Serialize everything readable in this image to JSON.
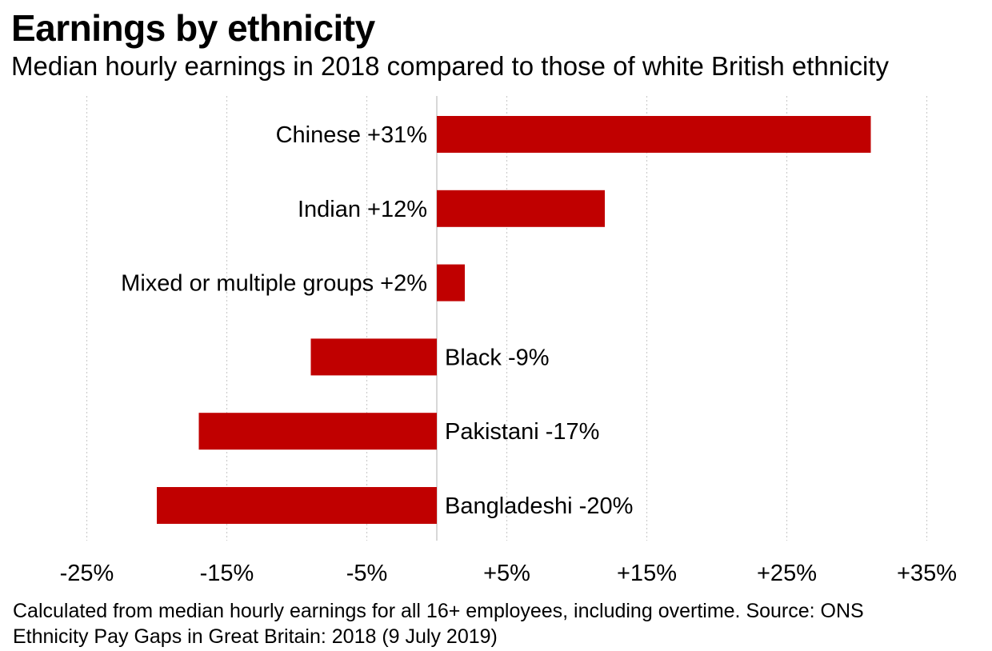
{
  "header": {
    "title": "Earnings by ethnicity",
    "subtitle": "Median hourly earnings in 2018 compared to those of white British ethnicity"
  },
  "footnote": {
    "line1": "Calculated from median hourly earnings for all 16+ employees, including overtime. Source: ONS",
    "line2": "Ethnicity Pay Gaps in Great Britain: 2018 (9 July 2019)"
  },
  "chart_data": {
    "type": "bar",
    "orientation": "horizontal",
    "categories": [
      "Chinese",
      "Indian",
      "Mixed or multiple groups",
      "Black",
      "Pakistani",
      "Bangladeshi"
    ],
    "values": [
      31,
      12,
      2,
      -9,
      -17,
      -20
    ],
    "bar_labels": [
      "Chinese +31%",
      "Indian +12%",
      "Mixed or multiple groups +2%",
      "Black -9%",
      "Pakistani -17%",
      "Bangladeshi -20%"
    ],
    "xlim": [
      -25,
      35
    ],
    "xticks": [
      -25,
      -15,
      -5,
      5,
      15,
      25,
      35
    ],
    "xtick_labels": [
      "-25%",
      "-15%",
      "-5%",
      "+5%",
      "+15%",
      "+25%",
      "+35%"
    ],
    "grid": "vertical dotted",
    "bar_color": "#c00000",
    "zero_line_color": "#cccccc",
    "grid_color": "#cccccc",
    "legend": "none"
  }
}
